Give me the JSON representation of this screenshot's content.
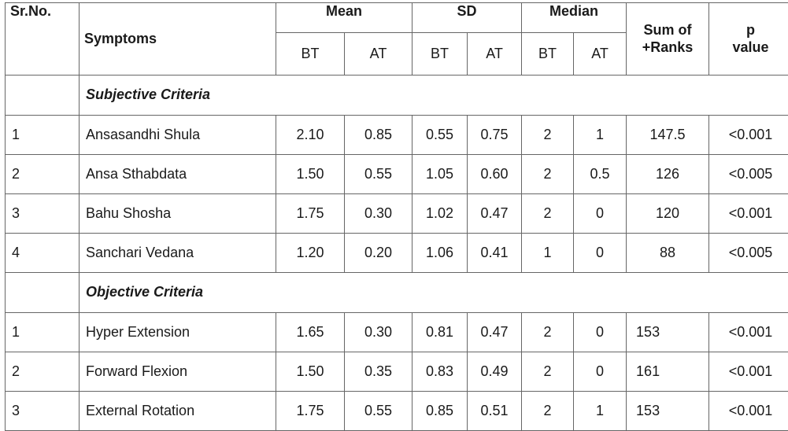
{
  "header": {
    "sr_no": "Sr.No.",
    "symptoms": "Symptoms",
    "mean": "Mean",
    "sd": "SD",
    "median": "Median",
    "sum_of": "Sum of",
    "plus_ranks": "+Ranks",
    "p": "p",
    "value": "value",
    "bt": "BT",
    "at": "AT"
  },
  "sections": [
    {
      "label": "Subjective Criteria",
      "rows": [
        {
          "sr": "1",
          "name": "Ansasandhi Shula",
          "mean_bt": "2.10",
          "mean_at": "0.85",
          "sd_bt": "0.55",
          "sd_at": "0.75",
          "med_bt": "2",
          "med_at": "1",
          "sum": "147.5",
          "p": "<0.001"
        },
        {
          "sr": "2",
          "name": "Ansa Sthabdata",
          "mean_bt": "1.50",
          "mean_at": "0.55",
          "sd_bt": "1.05",
          "sd_at": "0.60",
          "med_bt": "2",
          "med_at": "0.5",
          "sum": "126",
          "p": "<0.005"
        },
        {
          "sr": "3",
          "name": "Bahu Shosha",
          "mean_bt": "1.75",
          "mean_at": "0.30",
          "sd_bt": "1.02",
          "sd_at": "0.47",
          "med_bt": "2",
          "med_at": "0",
          "sum": "120",
          "p": "<0.001"
        },
        {
          "sr": "4",
          "name": "Sanchari Vedana",
          "mean_bt": "1.20",
          "mean_at": "0.20",
          "sd_bt": "1.06",
          "sd_at": "0.41",
          "med_bt": "1",
          "med_at": "0",
          "sum": "88",
          "p": "<0.005"
        }
      ]
    },
    {
      "label": "Objective Criteria",
      "rows": [
        {
          "sr": "1",
          "name": "Hyper Extension",
          "mean_bt": "1.65",
          "mean_at": "0.30",
          "sd_bt": "0.81",
          "sd_at": "0.47",
          "med_bt": "2",
          "med_at": "0",
          "sum": "153",
          "p": "<0.001"
        },
        {
          "sr": "2",
          "name": "Forward Flexion",
          "mean_bt": "1.50",
          "mean_at": "0.35",
          "sd_bt": "0.83",
          "sd_at": "0.49",
          "med_bt": "2",
          "med_at": "0",
          "sum": "161",
          "p": "<0.001"
        },
        {
          "sr": "3",
          "name": "External Rotation",
          "mean_bt": "1.75",
          "mean_at": "0.55",
          "sd_bt": "0.85",
          "sd_at": "0.51",
          "med_bt": "2",
          "med_at": "1",
          "sum": "153",
          "p": "<0.001"
        }
      ]
    }
  ]
}
